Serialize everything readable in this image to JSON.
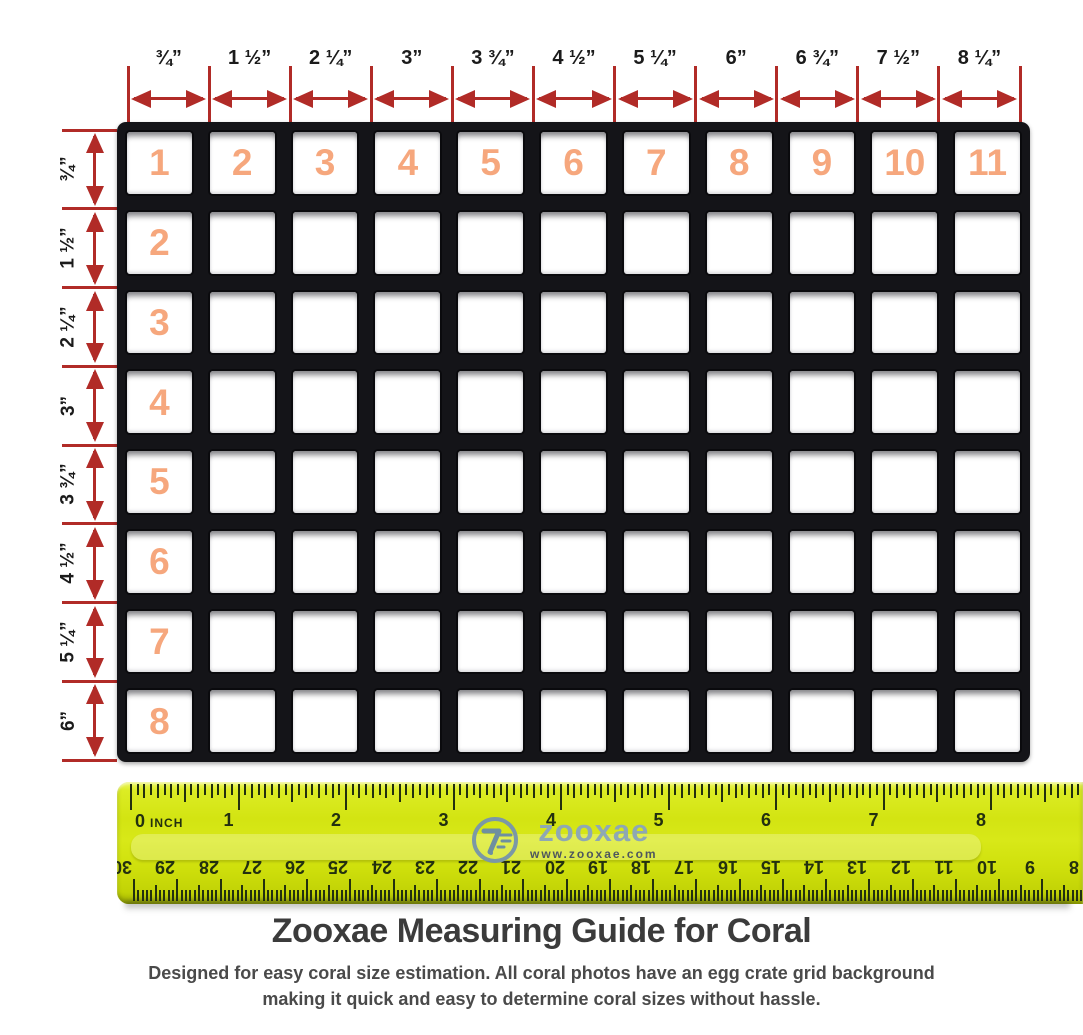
{
  "colors": {
    "arrow": "#b12b27",
    "cell_number": "#f6a77d",
    "ruler_tick": "#23300f",
    "logo_text": "#8ea8b4",
    "logo_url": "#4e565e",
    "title": "#3b3b3b",
    "subtitle": "#4a4a4a"
  },
  "top_scale": {
    "labels": [
      "¾”",
      "1 ½”",
      "2 ¼”",
      "3”",
      "3 ¾”",
      "4 ½”",
      "5 ¼”",
      "6”",
      "6 ¾”",
      "7 ½”",
      "8 ¼”"
    ]
  },
  "left_scale": {
    "labels": [
      "¾”",
      "1 ½”",
      "2 ¼”",
      "3”",
      "3 ¾”",
      "4 ½”",
      "5 ¼”",
      "6”"
    ]
  },
  "grid": {
    "rows": 8,
    "columns": 11,
    "top_row_numbers": [
      "1",
      "2",
      "3",
      "4",
      "5",
      "6",
      "7",
      "8",
      "9",
      "10",
      "11"
    ],
    "left_column_numbers": [
      "2",
      "3",
      "4",
      "5",
      "6",
      "7",
      "8"
    ]
  },
  "ruler": {
    "zero_label": "0",
    "zero_unit": "INCH",
    "inch_numbers": [
      "1",
      "2",
      "3",
      "4",
      "5",
      "6",
      "7",
      "8"
    ],
    "cm_numbers": [
      "30",
      "29",
      "28",
      "27",
      "26",
      "25",
      "24",
      "23",
      "22",
      "21",
      "20",
      "19",
      "18",
      "17",
      "16",
      "15",
      "14",
      "13",
      "12",
      "11",
      "10",
      "9",
      "8"
    ],
    "logo_text": "zooxae",
    "logo_url": "www.zooxae.com"
  },
  "footer": {
    "title": "Zooxae Measuring Guide for Coral",
    "subtitle_line1": "Designed for easy coral size estimation. All coral photos have an egg crate grid background",
    "subtitle_line2": "making it quick and easy to determine coral sizes without hassle."
  }
}
